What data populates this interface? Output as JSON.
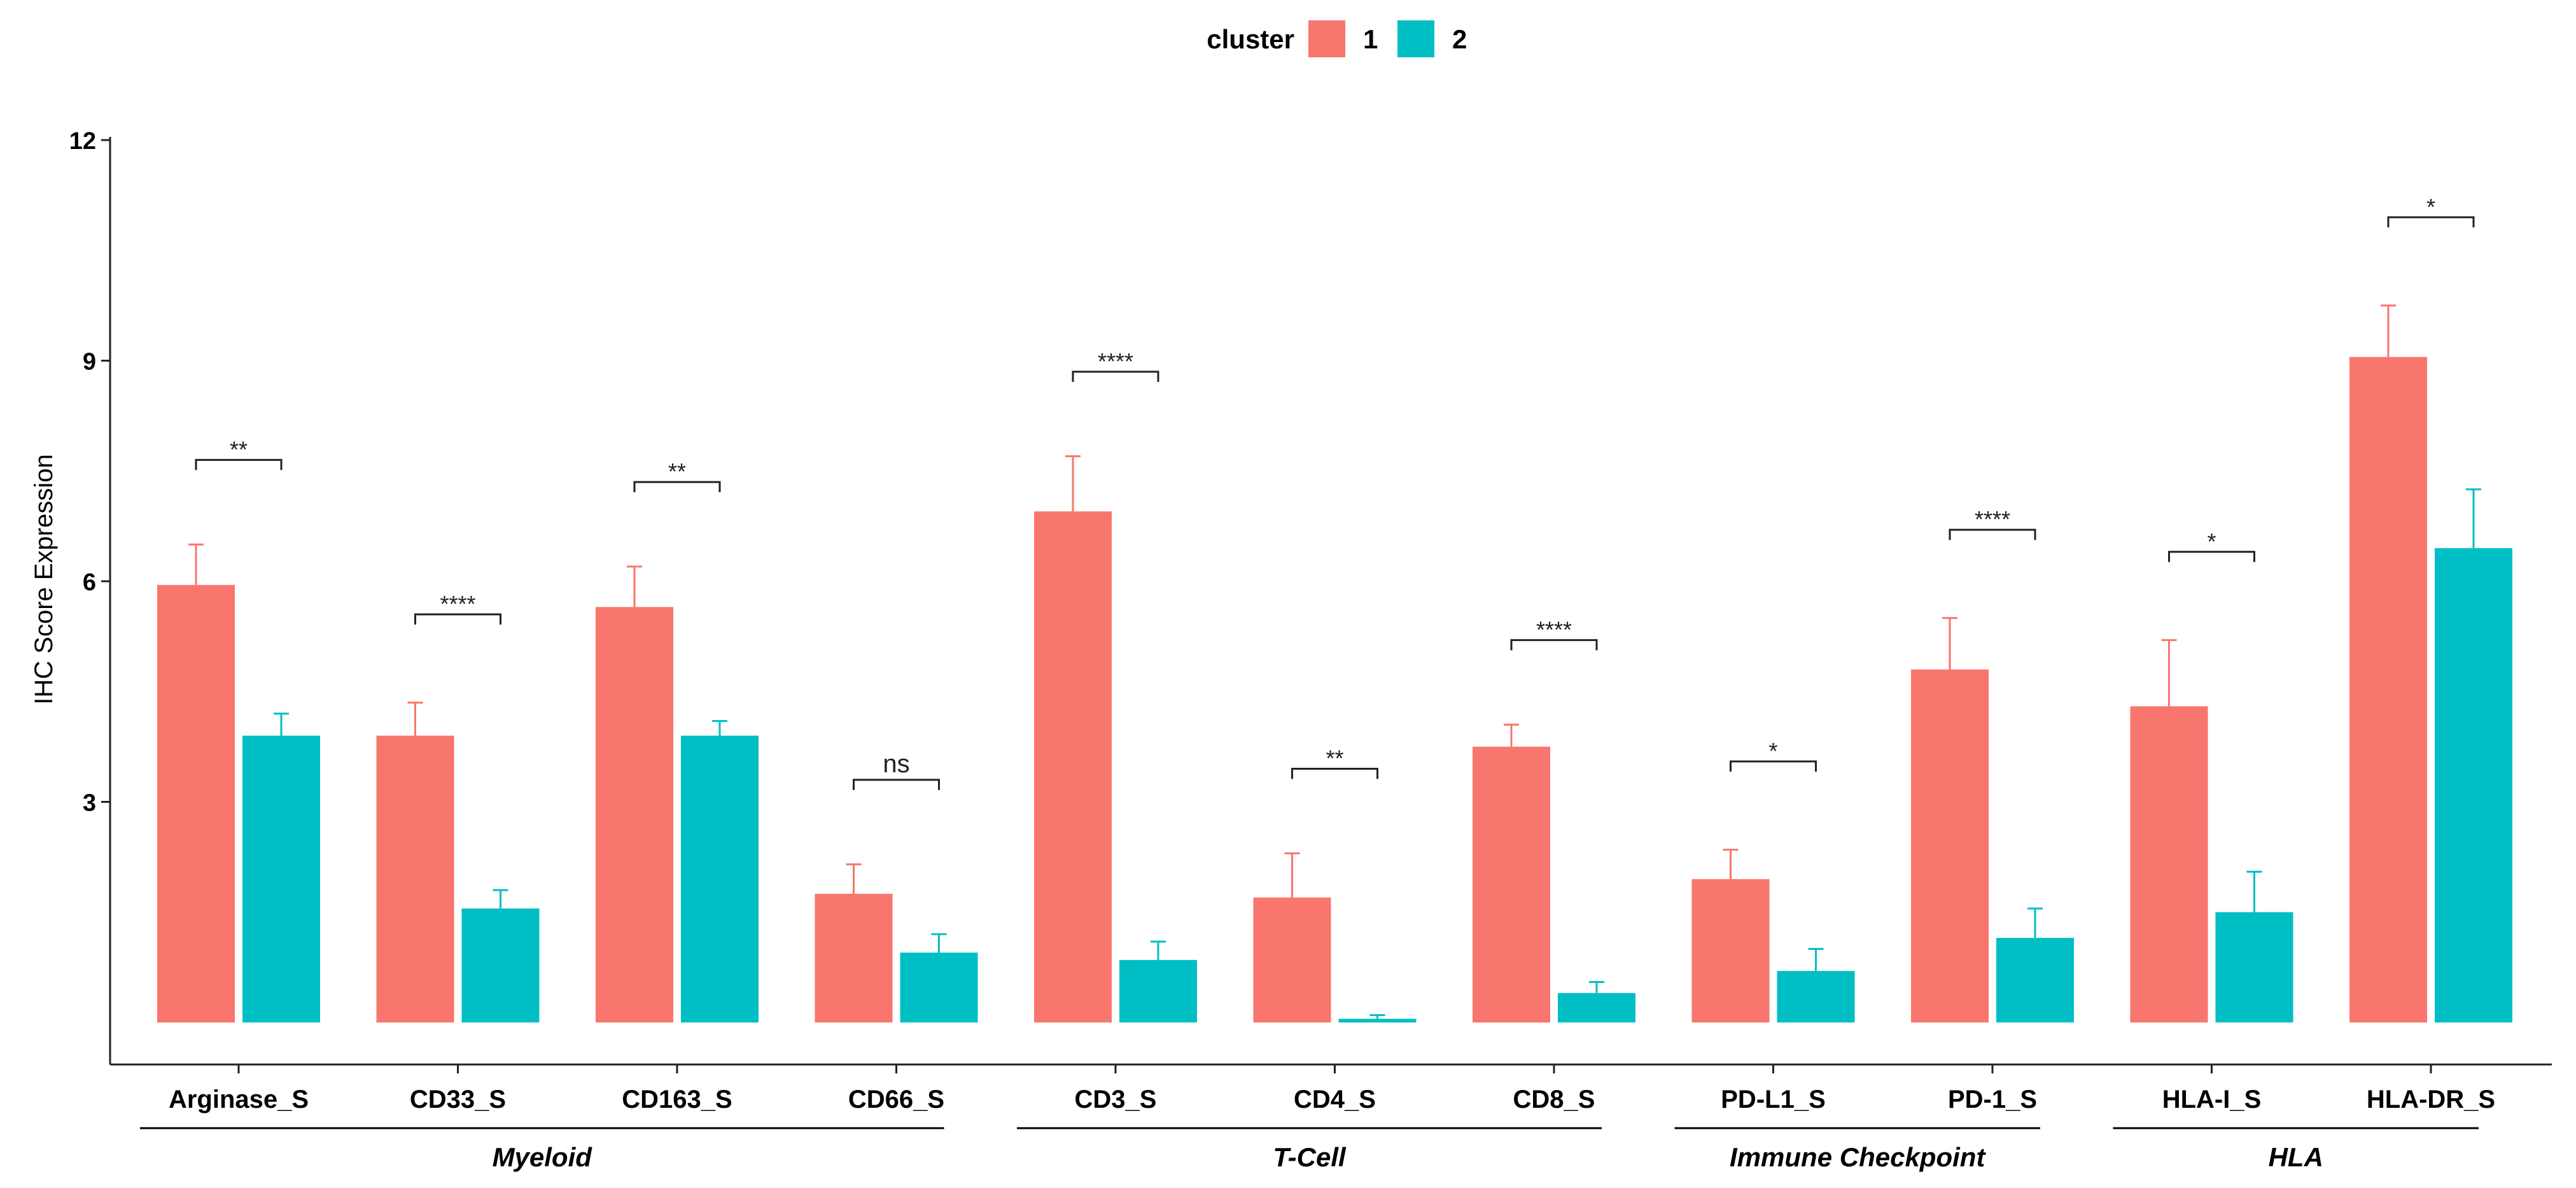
{
  "chart_data": {
    "type": "bar",
    "title": "",
    "xlabel": "",
    "ylabel": "IHC Score Expression",
    "ylim": [
      -0.9,
      12
    ],
    "yticks": [
      3,
      6,
      9,
      12
    ],
    "grid": false,
    "legend": {
      "title": "cluster",
      "placement": "top",
      "entries": [
        {
          "label": "1",
          "color": "#F8766D"
        },
        {
          "label": "2",
          "color": "#00BFC4"
        }
      ]
    },
    "categories": [
      "Arginase_S",
      "CD33_S",
      "CD163_S",
      "CD66_S",
      "CD3_S",
      "CD4_S",
      "CD8_S",
      "PD-L1_S",
      "PD-1_S",
      "HLA-I_S",
      "HLA-DR_S"
    ],
    "series": [
      {
        "name": "1",
        "color": "#F8766D",
        "values": [
          5.95,
          3.9,
          5.65,
          1.75,
          6.95,
          1.7,
          3.75,
          1.95,
          4.8,
          4.3,
          9.05
        ],
        "error_upper": [
          6.5,
          4.35,
          6.2,
          2.15,
          7.7,
          2.3,
          4.05,
          2.35,
          5.5,
          5.2,
          9.75
        ]
      },
      {
        "name": "2",
        "color": "#00BFC4",
        "values": [
          3.9,
          1.55,
          3.9,
          0.95,
          0.85,
          0.05,
          0.4,
          0.7,
          1.15,
          1.5,
          6.45
        ],
        "error_upper": [
          4.2,
          1.8,
          4.1,
          1.2,
          1.1,
          0.1,
          0.55,
          1.0,
          1.55,
          2.05,
          7.25
        ]
      }
    ],
    "significance": [
      {
        "category": "Arginase_S",
        "label": "**",
        "y": 7.65
      },
      {
        "category": "CD33_S",
        "label": "****",
        "y": 5.55
      },
      {
        "category": "CD163_S",
        "label": "**",
        "y": 7.35
      },
      {
        "category": "CD66_S",
        "label": "ns",
        "y": 3.3
      },
      {
        "category": "CD3_S",
        "label": "****",
        "y": 8.85
      },
      {
        "category": "CD4_S",
        "label": "**",
        "y": 3.45
      },
      {
        "category": "CD8_S",
        "label": "****",
        "y": 5.2
      },
      {
        "category": "PD-L1_S",
        "label": "*",
        "y": 3.55
      },
      {
        "category": "PD-1_S",
        "label": "****",
        "y": 6.7
      },
      {
        "category": "HLA-I_S",
        "label": "*",
        "y": 6.4
      },
      {
        "category": "HLA-DR_S",
        "label": "*",
        "y": 10.95
      }
    ],
    "groups": [
      {
        "label": "Myeloid",
        "start": "Arginase_S",
        "end": "CD66_S"
      },
      {
        "label": "T-Cell",
        "start": "CD3_S",
        "end": "CD8_S"
      },
      {
        "label": "Immune Checkpoint",
        "start": "PD-L1_S",
        "end": "PD-1_S"
      },
      {
        "label": "HLA",
        "start": "HLA-I_S",
        "end": "HLA-DR_S"
      }
    ]
  }
}
